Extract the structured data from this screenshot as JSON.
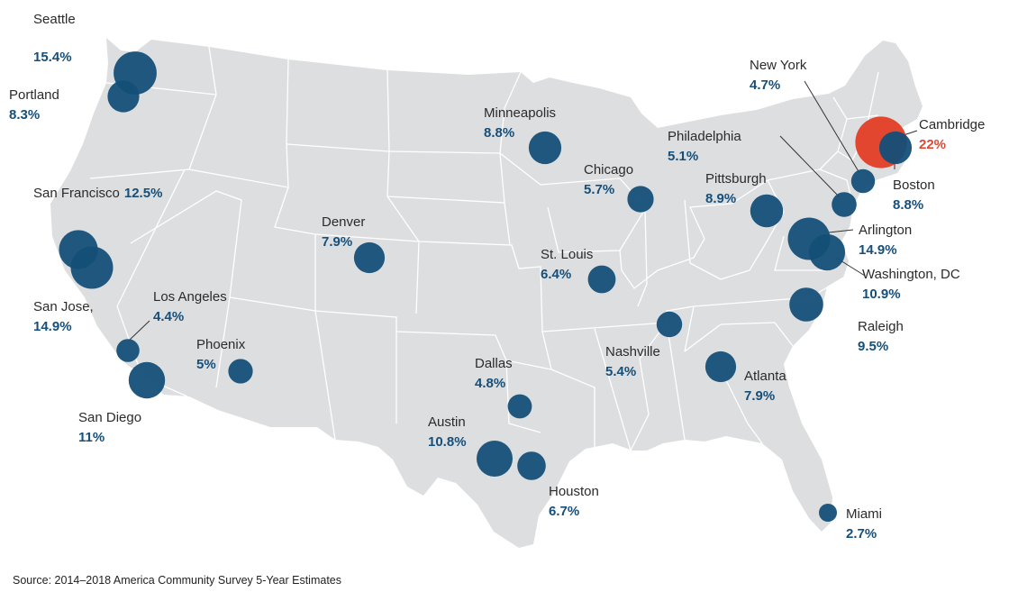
{
  "colors": {
    "land": "#dddee0",
    "bubble": "#144f78",
    "bubble_overlap": "#0c2c47",
    "highlight": "#e2462f",
    "value_text": "#154f7a",
    "leader": "#333333"
  },
  "source": "Source: 2014–2018 America Community Survey 5-Year Estimates",
  "cities": [
    {
      "id": "seattle",
      "name": "Seattle",
      "value": "15.4%",
      "pct": 15.4
    },
    {
      "id": "portland",
      "name": "Portland",
      "value": "8.3%",
      "pct": 8.3
    },
    {
      "id": "san-francisco",
      "name": "San Francisco",
      "value": "12.5%",
      "pct": 12.5
    },
    {
      "id": "san-jose",
      "name": "San Jose,",
      "value": "14.9%",
      "pct": 14.9
    },
    {
      "id": "los-angeles",
      "name": "Los Angeles",
      "value": "4.4%",
      "pct": 4.4
    },
    {
      "id": "san-diego",
      "name": "San Diego",
      "value": "11%",
      "pct": 11
    },
    {
      "id": "phoenix",
      "name": "Phoenix",
      "value": "5%",
      "pct": 5
    },
    {
      "id": "denver",
      "name": "Denver",
      "value": "7.9%",
      "pct": 7.9
    },
    {
      "id": "minneapolis",
      "name": "Minneapolis",
      "value": "8.8%",
      "pct": 8.8
    },
    {
      "id": "chicago",
      "name": "Chicago",
      "value": "5.7%",
      "pct": 5.7
    },
    {
      "id": "st-louis",
      "name": "St. Louis",
      "value": "6.4%",
      "pct": 6.4
    },
    {
      "id": "dallas",
      "name": "Dallas",
      "value": "4.8%",
      "pct": 4.8
    },
    {
      "id": "austin",
      "name": "Austin",
      "value": "10.8%",
      "pct": 10.8
    },
    {
      "id": "houston",
      "name": "Houston",
      "value": "6.7%",
      "pct": 6.7
    },
    {
      "id": "nashville",
      "name": "Nashville",
      "value": "5.4%",
      "pct": 5.4
    },
    {
      "id": "atlanta",
      "name": "Atlanta",
      "value": "7.9%",
      "pct": 7.9
    },
    {
      "id": "miami",
      "name": "Miami",
      "value": "2.7%",
      "pct": 2.7
    },
    {
      "id": "raleigh",
      "name": "Raleigh",
      "value": "9.5%",
      "pct": 9.5
    },
    {
      "id": "pittsburgh",
      "name": "Pittsburgh",
      "value": "8.9%",
      "pct": 8.9
    },
    {
      "id": "philadelphia",
      "name": "Philadelphia",
      "value": "5.1%",
      "pct": 5.1
    },
    {
      "id": "new-york",
      "name": "New York",
      "value": "4.7%",
      "pct": 4.7
    },
    {
      "id": "cambridge",
      "name": "Cambridge",
      "value": "22%",
      "pct": 22,
      "highlight": true
    },
    {
      "id": "boston",
      "name": "Boston",
      "value": "8.8%",
      "pct": 8.8
    },
    {
      "id": "arlington",
      "name": "Arlington",
      "value": "14.9%",
      "pct": 14.9
    },
    {
      "id": "washington-dc",
      "name": "Washington, DC",
      "value": "10.9%",
      "pct": 10.9
    }
  ]
}
